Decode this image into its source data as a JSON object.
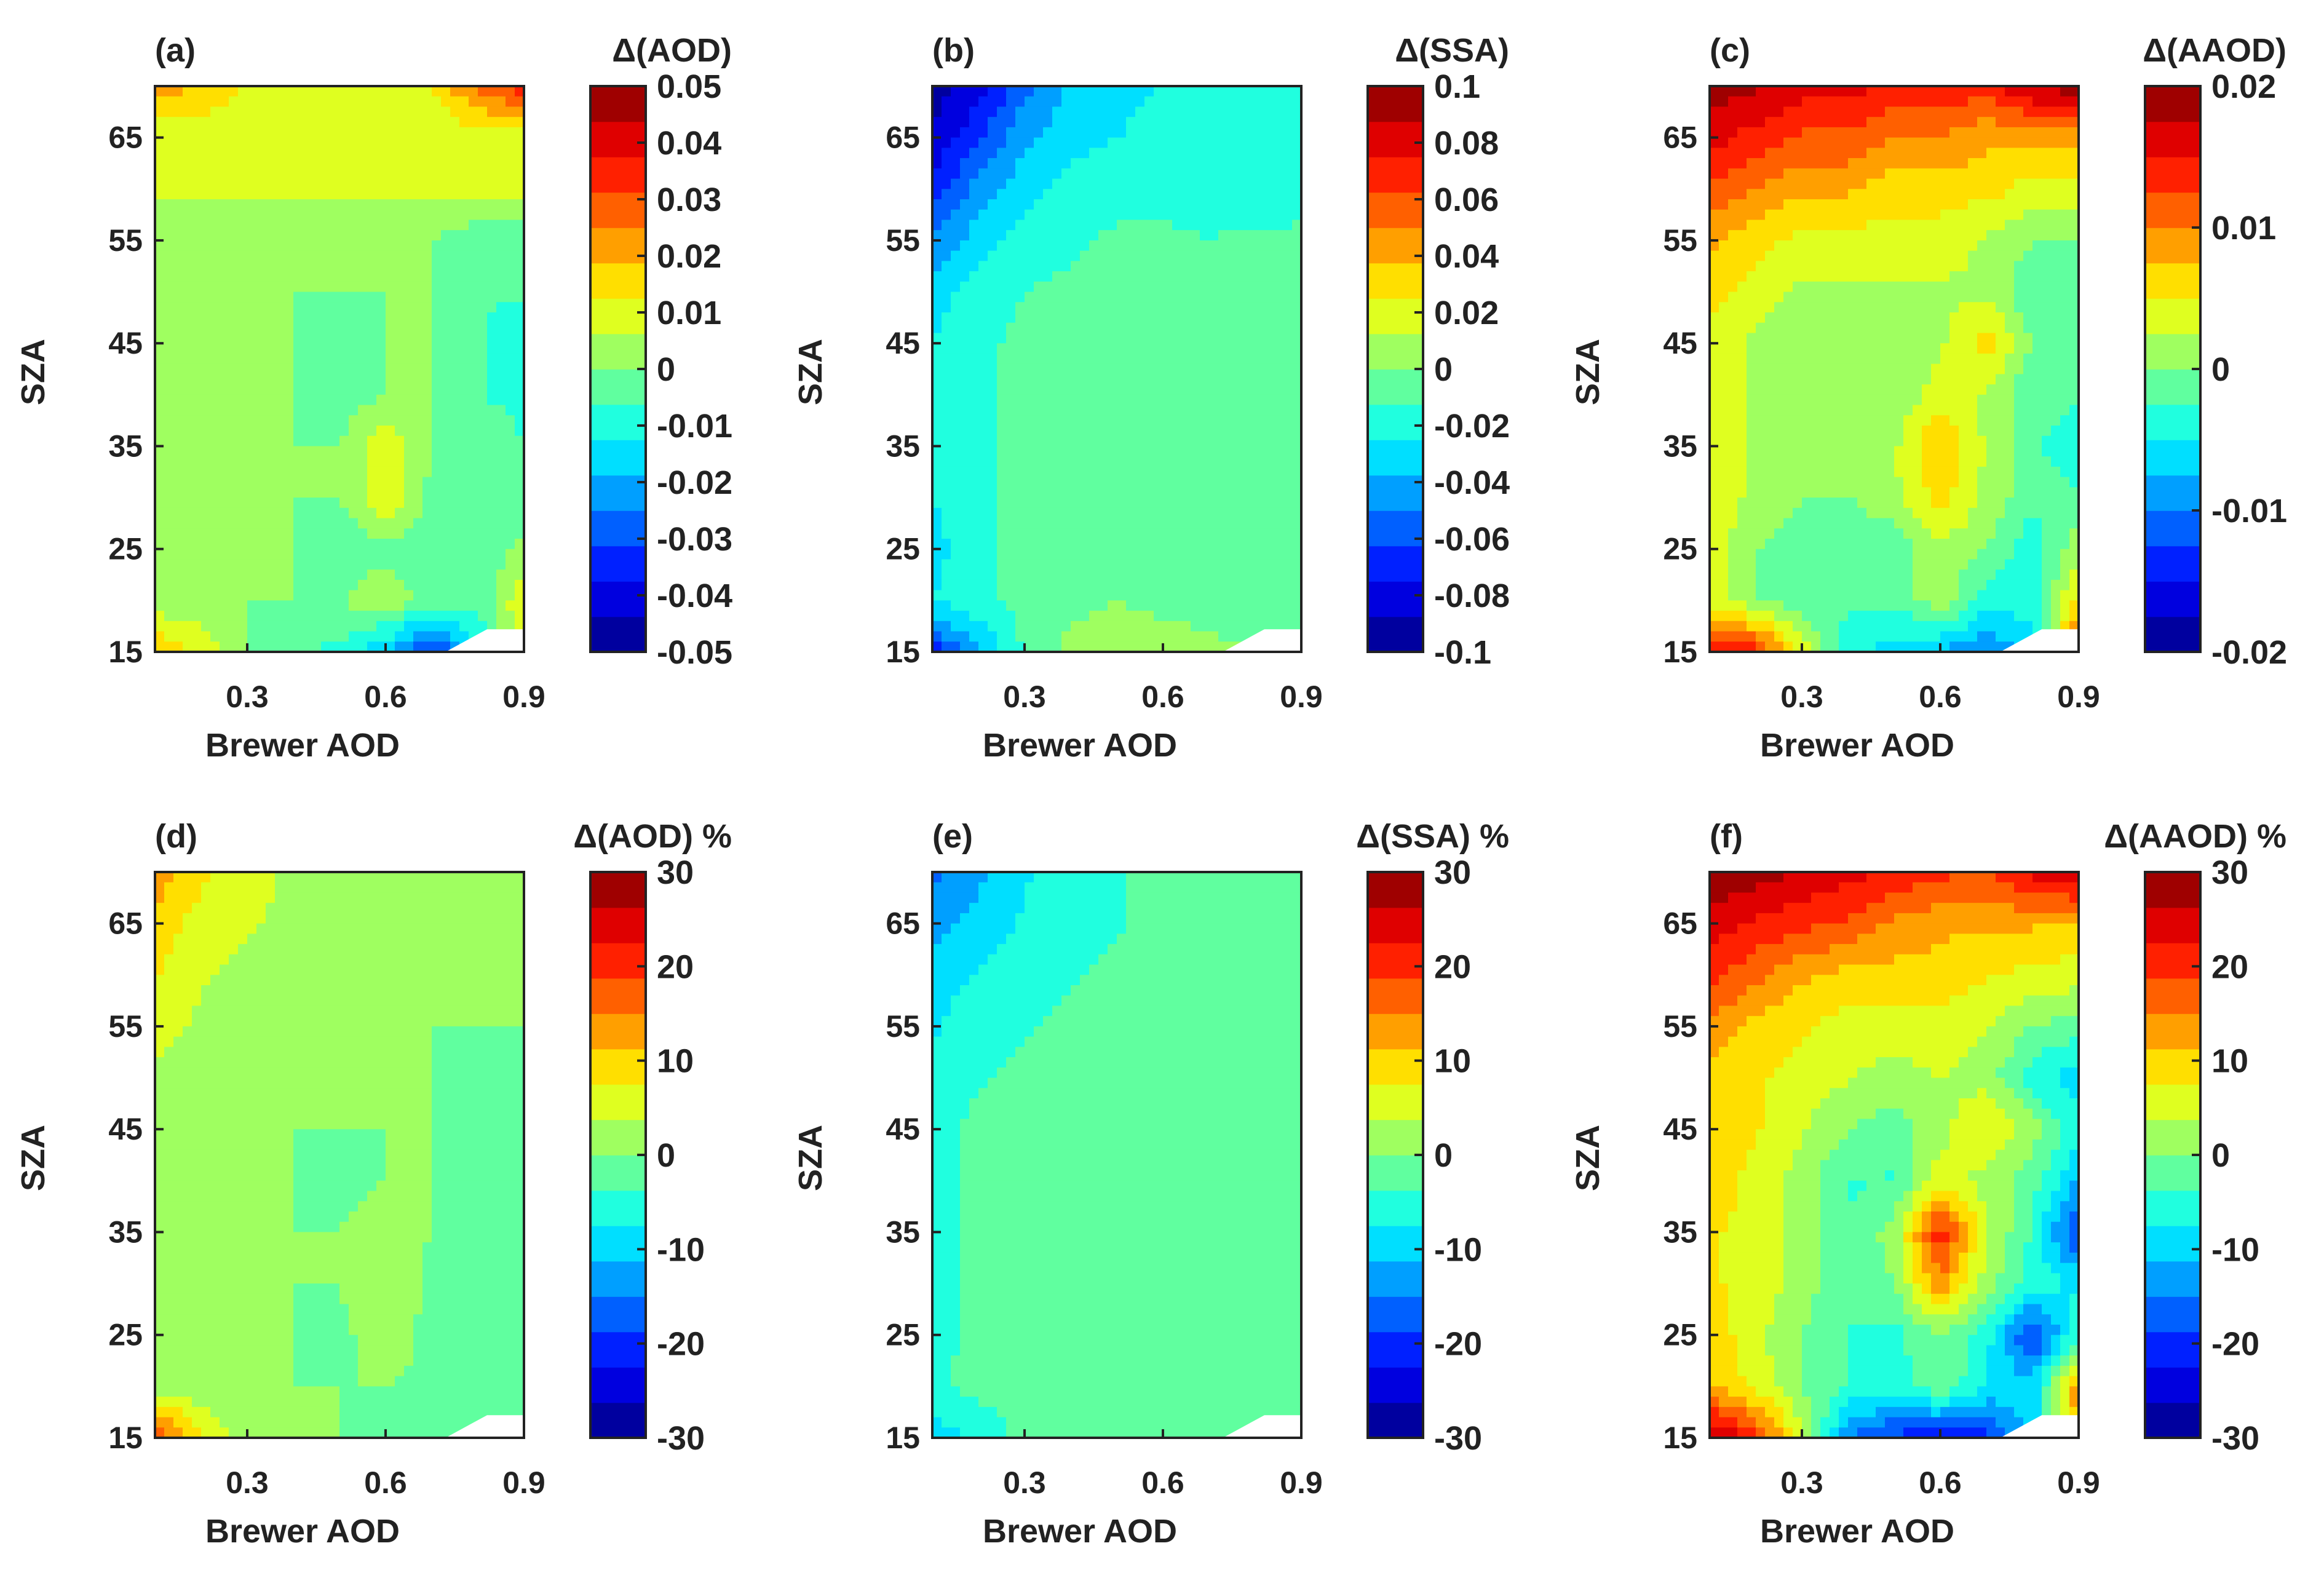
{
  "figure": {
    "description_free": true
  },
  "chart_data": [
    {
      "panel_label": "(a)",
      "type": "heatmap",
      "colorbar_title": "Δ(AOD)",
      "xlabel": "Brewer AOD",
      "ylabel": "SZA",
      "x_ticks": [
        "0.3",
        "0.6",
        "0.9"
      ],
      "y_ticks": [
        "15",
        "25",
        "35",
        "45",
        "55",
        "65"
      ],
      "xlim": [
        0.1,
        0.9
      ],
      "ylim": [
        15,
        70
      ],
      "clim": [
        -0.05,
        0.05
      ],
      "colorbar_ticks": [
        "0.05",
        "0.04",
        "0.03",
        "0.02",
        "0.01",
        "0",
        "-0.01",
        "-0.02",
        "-0.03",
        "-0.04",
        "-0.05"
      ],
      "x_values": [
        0.1,
        0.2,
        0.3,
        0.4,
        0.5,
        0.6,
        0.7,
        0.8,
        0.9
      ],
      "y_values": [
        15,
        20,
        25,
        30,
        35,
        40,
        45,
        50,
        55,
        60,
        65,
        70
      ],
      "z": [
        [
          0.018,
          0.012,
          0.0,
          -0.005,
          -0.008,
          -0.018,
          -0.035,
          -0.012,
          0.008
        ],
        [
          0.002,
          0.0,
          0.0,
          0.0,
          0.0,
          0.005,
          -0.002,
          -0.005,
          0.012
        ],
        [
          0.0,
          0.0,
          0.0,
          0.0,
          -0.005,
          -0.002,
          -0.006,
          -0.006,
          0.002
        ],
        [
          0.0,
          0.0,
          0.0,
          0.0,
          0.0,
          0.012,
          -0.002,
          -0.006,
          -0.004
        ],
        [
          0.0,
          0.0,
          0.0,
          0.0,
          0.0,
          0.012,
          0.0,
          -0.002,
          -0.006
        ],
        [
          0.0,
          0.0,
          0.0,
          0.0,
          -0.004,
          0.0,
          0.0,
          -0.006,
          -0.008
        ],
        [
          0.0,
          0.0,
          0.0,
          0.0,
          -0.004,
          0.0,
          0.0,
          -0.006,
          -0.008
        ],
        [
          0.0,
          0.0,
          0.0,
          0.0,
          0.0,
          0.0,
          0.0,
          -0.006,
          -0.006
        ],
        [
          0.0,
          0.0,
          0.0,
          0.0,
          0.0,
          0.0,
          0.0,
          -0.004,
          -0.006
        ],
        [
          0.008,
          0.008,
          0.008,
          0.008,
          0.008,
          0.008,
          0.008,
          0.008,
          0.008
        ],
        [
          0.008,
          0.008,
          0.008,
          0.008,
          0.008,
          0.008,
          0.008,
          0.008,
          0.008
        ],
        [
          0.022,
          0.018,
          0.012,
          0.01,
          0.01,
          0.01,
          0.012,
          0.028,
          0.035
        ]
      ]
    },
    {
      "panel_label": "(b)",
      "type": "heatmap",
      "colorbar_title": "Δ(SSA)",
      "xlabel": "Brewer AOD",
      "ylabel": "SZA",
      "x_ticks": [
        "0.3",
        "0.6",
        "0.9"
      ],
      "y_ticks": [
        "15",
        "25",
        "35",
        "45",
        "55",
        "65"
      ],
      "xlim": [
        0.1,
        0.9
      ],
      "ylim": [
        15,
        70
      ],
      "clim": [
        -0.1,
        0.1
      ],
      "colorbar_ticks": [
        "0.1",
        "0.08",
        "0.06",
        "0.04",
        "0.02",
        "0",
        "-0.02",
        "-0.04",
        "-0.06",
        "-0.08",
        "-0.1"
      ],
      "x_values": [
        0.1,
        0.2,
        0.3,
        0.4,
        0.5,
        0.6,
        0.7,
        0.8,
        0.9
      ],
      "y_values": [
        15,
        20,
        25,
        30,
        35,
        40,
        45,
        50,
        55,
        60,
        65,
        70
      ],
      "z": [
        [
          -0.07,
          -0.04,
          -0.01,
          0.005,
          0.01,
          0.01,
          0.005,
          0.0,
          0.0
        ],
        [
          -0.025,
          -0.015,
          -0.008,
          -0.005,
          0.0,
          -0.005,
          -0.01,
          -0.01,
          -0.008
        ],
        [
          -0.03,
          -0.015,
          -0.01,
          -0.005,
          -0.002,
          -0.008,
          -0.01,
          -0.012,
          -0.01
        ],
        [
          -0.025,
          -0.015,
          -0.01,
          -0.008,
          -0.006,
          -0.01,
          -0.01,
          -0.01,
          -0.008
        ],
        [
          -0.025,
          -0.015,
          -0.01,
          -0.006,
          -0.006,
          -0.012,
          -0.008,
          -0.006,
          0.0
        ],
        [
          -0.025,
          -0.015,
          -0.01,
          -0.006,
          0.0,
          -0.006,
          -0.008,
          -0.008,
          -0.004
        ],
        [
          -0.025,
          -0.015,
          -0.01,
          -0.008,
          -0.006,
          -0.006,
          -0.008,
          -0.008,
          -0.006
        ],
        [
          -0.03,
          -0.02,
          -0.012,
          -0.01,
          -0.008,
          -0.008,
          -0.01,
          -0.004,
          -0.004
        ],
        [
          -0.05,
          -0.03,
          -0.02,
          -0.015,
          -0.01,
          -0.01,
          -0.012,
          -0.01,
          -0.01
        ],
        [
          -0.07,
          -0.045,
          -0.03,
          -0.02,
          -0.018,
          -0.016,
          -0.02,
          -0.02,
          -0.018
        ],
        [
          -0.085,
          -0.065,
          -0.04,
          -0.03,
          -0.025,
          -0.02,
          -0.025,
          -0.025,
          -0.02
        ],
        [
          -0.095,
          -0.08,
          -0.055,
          -0.035,
          -0.03,
          -0.025,
          -0.02,
          -0.025,
          -0.02
        ]
      ]
    },
    {
      "panel_label": "(c)",
      "type": "heatmap",
      "colorbar_title": "Δ(AAOD)",
      "xlabel": "Brewer AOD",
      "ylabel": "SZA",
      "x_ticks": [
        "0.3",
        "0.6",
        "0.9"
      ],
      "y_ticks": [
        "15",
        "25",
        "35",
        "45",
        "55",
        "65"
      ],
      "xlim": [
        0.1,
        0.9
      ],
      "ylim": [
        15,
        70
      ],
      "clim": [
        -0.02,
        0.02
      ],
      "colorbar_ticks": [
        "0.02",
        "0.01",
        "0",
        "-0.01",
        "-0.02"
      ],
      "x_values": [
        0.1,
        0.2,
        0.3,
        0.4,
        0.5,
        0.6,
        0.7,
        0.8,
        0.9
      ],
      "y_values": [
        15,
        20,
        25,
        30,
        35,
        40,
        45,
        50,
        55,
        60,
        65,
        70
      ],
      "z": [
        [
          0.016,
          0.014,
          0.004,
          -0.004,
          -0.006,
          -0.008,
          -0.01,
          -0.006,
          0.014
        ],
        [
          0.004,
          0.0,
          -0.002,
          -0.002,
          -0.002,
          0.002,
          -0.004,
          -0.004,
          0.006
        ],
        [
          0.004,
          0.0,
          -0.002,
          -0.002,
          -0.002,
          0.002,
          0.0,
          -0.004,
          0.002
        ],
        [
          0.004,
          0.002,
          0.0,
          0.0,
          0.002,
          0.006,
          0.002,
          -0.002,
          -0.002
        ],
        [
          0.004,
          0.002,
          0.0,
          0.0,
          0.002,
          0.008,
          0.002,
          -0.002,
          -0.004
        ],
        [
          0.004,
          0.002,
          0.0,
          0.0,
          0.0,
          0.004,
          0.002,
          -0.002,
          -0.002
        ],
        [
          0.004,
          0.002,
          0.0,
          0.0,
          0.0,
          0.002,
          0.006,
          0.0,
          0.0
        ],
        [
          0.006,
          0.004,
          0.002,
          0.002,
          0.002,
          0.002,
          0.002,
          -0.002,
          -0.002
        ],
        [
          0.008,
          0.006,
          0.004,
          0.004,
          0.004,
          0.004,
          0.002,
          0.0,
          0.0
        ],
        [
          0.012,
          0.01,
          0.008,
          0.008,
          0.006,
          0.006,
          0.006,
          0.004,
          0.004
        ],
        [
          0.016,
          0.014,
          0.012,
          0.012,
          0.01,
          0.01,
          0.008,
          0.008,
          0.008
        ],
        [
          0.019,
          0.018,
          0.016,
          0.016,
          0.014,
          0.014,
          0.014,
          0.018,
          0.019
        ]
      ]
    },
    {
      "panel_label": "(d)",
      "type": "heatmap",
      "colorbar_title": "Δ(AOD) %",
      "xlabel": "Brewer AOD",
      "ylabel": "SZA",
      "x_ticks": [
        "0.3",
        "0.6",
        "0.9"
      ],
      "y_ticks": [
        "15",
        "25",
        "35",
        "45",
        "55",
        "65"
      ],
      "xlim": [
        0.1,
        0.9
      ],
      "ylim": [
        15,
        70
      ],
      "clim": [
        -30,
        30
      ],
      "colorbar_ticks": [
        "30",
        "20",
        "10",
        "0",
        "-10",
        "-20",
        "-30"
      ],
      "x_values": [
        0.1,
        0.2,
        0.3,
        0.4,
        0.5,
        0.6,
        0.7,
        0.8,
        0.9
      ],
      "y_values": [
        15,
        20,
        25,
        30,
        35,
        40,
        45,
        50,
        55,
        60,
        65,
        70
      ],
      "z": [
        [
          20,
          8,
          2,
          0,
          0,
          -2,
          -4,
          -2,
          0
        ],
        [
          2,
          1,
          0,
          0,
          0,
          0,
          -1,
          -2,
          -1
        ],
        [
          3,
          1,
          0,
          0,
          -1,
          2,
          -1,
          -2,
          -2
        ],
        [
          2,
          1,
          0,
          0,
          0,
          3,
          -1,
          -2,
          -2
        ],
        [
          3,
          1,
          0,
          0,
          0,
          1,
          0,
          -1,
          -2
        ],
        [
          2,
          1,
          0,
          0,
          -1,
          0,
          0,
          -1,
          -2
        ],
        [
          3,
          2,
          1,
          0,
          0,
          0,
          0,
          -1,
          -1
        ],
        [
          3,
          2,
          1,
          0,
          0,
          0,
          0,
          -1,
          0
        ],
        [
          5,
          3,
          2,
          1,
          0,
          0,
          0,
          0,
          0
        ],
        [
          8,
          4,
          3,
          2,
          1,
          1,
          1,
          1,
          1
        ],
        [
          10,
          6,
          4,
          3,
          2,
          2,
          2,
          3,
          1
        ],
        [
          14,
          8,
          5,
          3,
          3,
          2,
          2,
          3,
          2
        ]
      ]
    },
    {
      "panel_label": "(e)",
      "type": "heatmap",
      "colorbar_title": "Δ(SSA) %",
      "xlabel": "Brewer AOD",
      "ylabel": "SZA",
      "x_ticks": [
        "0.3",
        "0.6",
        "0.9"
      ],
      "y_ticks": [
        "15",
        "25",
        "35",
        "45",
        "55",
        "65"
      ],
      "xlim": [
        0.1,
        0.9
      ],
      "ylim": [
        15,
        70
      ],
      "clim": [
        -30,
        30
      ],
      "colorbar_ticks": [
        "30",
        "20",
        "10",
        "0",
        "-10",
        "-20",
        "-30"
      ],
      "x_values": [
        0.1,
        0.2,
        0.3,
        0.4,
        0.5,
        0.6,
        0.7,
        0.8,
        0.9
      ],
      "y_values": [
        15,
        20,
        25,
        30,
        35,
        40,
        45,
        50,
        55,
        60,
        65,
        70
      ],
      "z": [
        [
          -10,
          -6,
          -3,
          -1,
          0,
          0,
          0,
          -1,
          -1
        ],
        [
          -4,
          -3,
          -2,
          -1,
          0,
          -1,
          -2,
          -2,
          -2
        ],
        [
          -5,
          -3,
          -2,
          -1,
          0,
          -1,
          -2,
          -2,
          -2
        ],
        [
          -5,
          -3,
          -2,
          -2,
          -1,
          -2,
          -2,
          -2,
          -2
        ],
        [
          -5,
          -3,
          -2,
          -1,
          -1,
          -2,
          -2,
          -1,
          0
        ],
        [
          -5,
          -3,
          -2,
          -1,
          0,
          -1,
          -2,
          -2,
          -1
        ],
        [
          -5,
          -3,
          -2,
          -2,
          -1,
          -1,
          -2,
          -2,
          -1
        ],
        [
          -6,
          -4,
          -3,
          -2,
          -2,
          -2,
          -2,
          -1,
          -1
        ],
        [
          -8,
          -5,
          -4,
          -3,
          -2,
          -2,
          -2,
          -2,
          -2
        ],
        [
          -10,
          -7,
          -5,
          -4,
          -3,
          -3,
          -3,
          -3,
          -3
        ],
        [
          -13,
          -10,
          -7,
          -5,
          -4,
          -3,
          -3,
          -3,
          -3
        ],
        [
          -16,
          -12,
          -8,
          -6,
          -4,
          -3,
          -3,
          -3,
          -3
        ]
      ]
    },
    {
      "panel_label": "(f)",
      "type": "heatmap",
      "colorbar_title": "Δ(AAOD) %",
      "xlabel": "Brewer AOD",
      "ylabel": "SZA",
      "x_ticks": [
        "0.3",
        "0.6",
        "0.9"
      ],
      "y_ticks": [
        "15",
        "25",
        "35",
        "45",
        "55",
        "65"
      ],
      "xlim": [
        0.1,
        0.9
      ],
      "ylim": [
        15,
        70
      ],
      "clim": [
        -30,
        30
      ],
      "colorbar_ticks": [
        "30",
        "20",
        "10",
        "0",
        "-10",
        "-20",
        "-30"
      ],
      "x_values": [
        0.1,
        0.2,
        0.3,
        0.4,
        0.5,
        0.6,
        0.7,
        0.8,
        0.9
      ],
      "y_values": [
        15,
        20,
        25,
        30,
        35,
        40,
        45,
        50,
        55,
        60,
        65,
        70
      ],
      "z": [
        [
          28,
          20,
          5,
          -15,
          -20,
          -22,
          -20,
          -10,
          12
        ],
        [
          12,
          6,
          0,
          -4,
          -6,
          0,
          -8,
          -10,
          15
        ],
        [
          10,
          5,
          0,
          -4,
          -5,
          0,
          -6,
          -20,
          -4
        ],
        [
          8,
          6,
          2,
          -3,
          0,
          14,
          2,
          -6,
          -8
        ],
        [
          8,
          6,
          2,
          -4,
          2,
          22,
          4,
          -4,
          -20
        ],
        [
          10,
          6,
          2,
          -4,
          -4,
          6,
          2,
          -2,
          -12
        ],
        [
          10,
          8,
          4,
          0,
          -2,
          2,
          8,
          2,
          -6
        ],
        [
          10,
          8,
          6,
          4,
          2,
          4,
          2,
          -6,
          -10
        ],
        [
          14,
          10,
          8,
          6,
          6,
          6,
          4,
          0,
          -2
        ],
        [
          20,
          16,
          12,
          10,
          10,
          10,
          8,
          6,
          6
        ],
        [
          24,
          22,
          20,
          18,
          14,
          12,
          12,
          12,
          10
        ],
        [
          30,
          28,
          26,
          24,
          22,
          20,
          18,
          24,
          28
        ]
      ]
    }
  ]
}
